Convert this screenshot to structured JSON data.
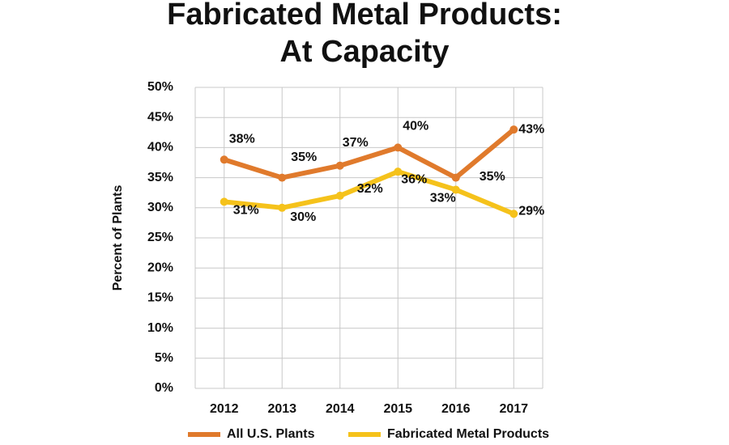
{
  "chart_data": {
    "type": "line",
    "title": [
      "Fabricated Metal Products:",
      "At Capacity"
    ],
    "y_label": "Percent of Plants",
    "categories": [
      "2012",
      "2013",
      "2014",
      "2015",
      "2016",
      "2017"
    ],
    "series": [
      {
        "name": "All U.S. Plants",
        "color": "#e07a2c",
        "values": [
          38,
          35,
          37,
          40,
          35,
          43
        ],
        "value_labels": [
          "38%",
          "35%",
          "37%",
          "40%",
          "35%",
          "43%"
        ]
      },
      {
        "name": "Fabricated Metal Products",
        "color": "#f5c21b",
        "values": [
          31,
          30,
          32,
          36,
          33,
          29
        ],
        "value_labels": [
          "31%",
          "30%",
          "32%",
          "36%",
          "33%",
          "29%"
        ]
      }
    ],
    "ylim": [
      0,
      50
    ],
    "yticks": [
      {
        "value": 0,
        "label": "0%"
      },
      {
        "value": 5,
        "label": "5%"
      },
      {
        "value": 10,
        "label": "10%"
      },
      {
        "value": 15,
        "label": "15%"
      },
      {
        "value": 20,
        "label": "20%"
      },
      {
        "value": 25,
        "label": "25%"
      },
      {
        "value": 30,
        "label": "30%"
      },
      {
        "value": 35,
        "label": "35%"
      },
      {
        "value": 40,
        "label": "40%"
      },
      {
        "value": 45,
        "label": "45%"
      },
      {
        "value": 50,
        "label": "50%"
      }
    ],
    "grid": true
  }
}
